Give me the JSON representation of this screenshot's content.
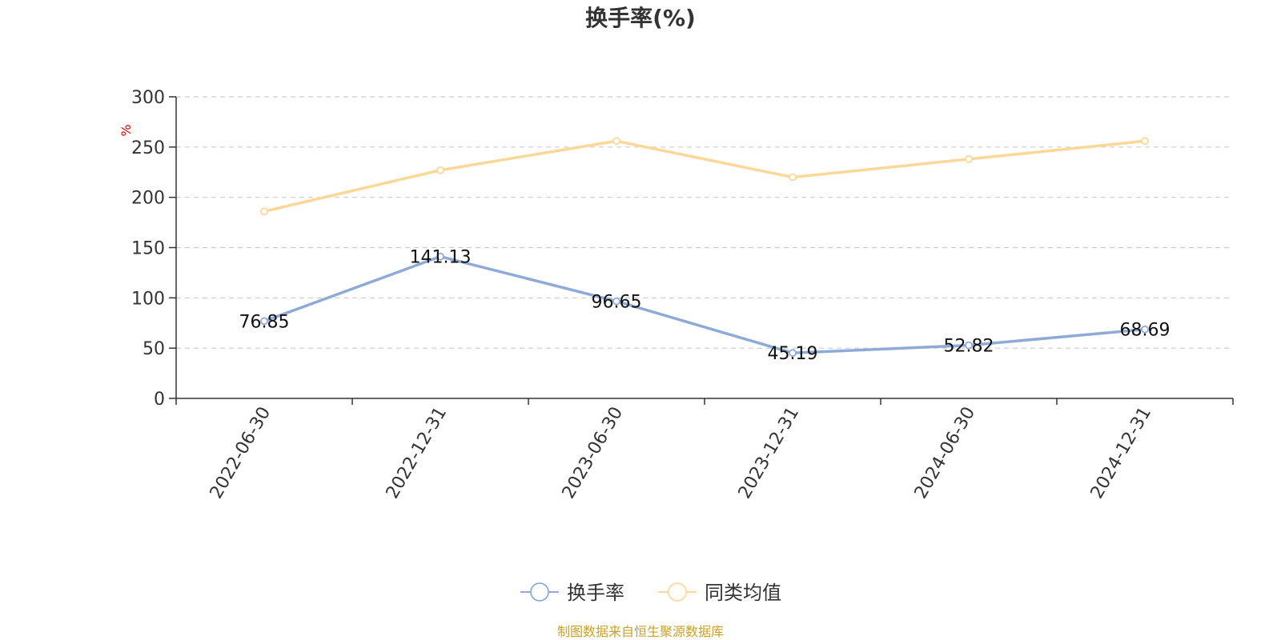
{
  "chart_data": {
    "type": "line",
    "title": "换手率(%)",
    "ylabel": "%",
    "xlabel": "",
    "ylim": [
      0,
      300
    ],
    "yticks": [
      0,
      50,
      100,
      150,
      200,
      250,
      300
    ],
    "grid": true,
    "categories": [
      "2022-06-30",
      "2022-12-31",
      "2023-06-30",
      "2023-12-31",
      "2024-06-30",
      "2024-12-31"
    ],
    "series": [
      {
        "name": "换手率",
        "color": "#8eabd7",
        "values": [
          76.85,
          141.13,
          96.65,
          45.19,
          52.82,
          68.69
        ],
        "labels": [
          "76.85",
          "141.13",
          "96.65",
          "45.19",
          "52.82",
          "68.69"
        ]
      },
      {
        "name": "同类均值",
        "color": "#fbd898",
        "values": [
          186,
          227,
          256,
          220,
          238,
          256
        ]
      }
    ],
    "legend_position": "bottom-center",
    "source": "制图数据来自恒生聚源数据库"
  }
}
